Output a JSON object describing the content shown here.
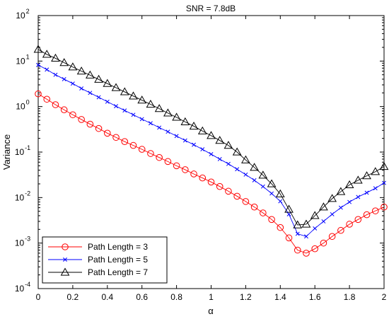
{
  "chart_data": {
    "type": "line",
    "title": "SNR = 7.8dB",
    "xlabel": "α",
    "ylabel": "Variance",
    "xlim": [
      0,
      2
    ],
    "ylim": [
      0.0001,
      100
    ],
    "yscale": "log",
    "x_ticks": [
      "0",
      "0.2",
      "0.4",
      "0.6",
      "0.8",
      "1",
      "1.2",
      "1.4",
      "1.6",
      "1.8",
      "2"
    ],
    "y_tick_base": "10",
    "y_tick_exponents": [
      "-4",
      "-3",
      "-2",
      "-1",
      "0",
      "1",
      "2"
    ],
    "grid": false,
    "legend_position": "bottom-left",
    "x": [
      0,
      0.05,
      0.1,
      0.15,
      0.2,
      0.25,
      0.3,
      0.35,
      0.4,
      0.45,
      0.5,
      0.55,
      0.6,
      0.65,
      0.7,
      0.75,
      0.8,
      0.85,
      0.9,
      0.95,
      1.0,
      1.05,
      1.1,
      1.15,
      1.2,
      1.25,
      1.3,
      1.35,
      1.4,
      1.45,
      1.5,
      1.55,
      1.6,
      1.65,
      1.7,
      1.75,
      1.8,
      1.85,
      1.9,
      1.95,
      2.0
    ],
    "series": [
      {
        "name": "Path Length = 3",
        "color": "#ff0000",
        "marker": "circle",
        "values": [
          1.9,
          1.45,
          1.1,
          0.85,
          0.66,
          0.52,
          0.41,
          0.33,
          0.26,
          0.21,
          0.17,
          0.14,
          0.115,
          0.093,
          0.076,
          0.062,
          0.05,
          0.041,
          0.033,
          0.027,
          0.022,
          0.0175,
          0.0138,
          0.0107,
          0.0082,
          0.0062,
          0.0046,
          0.0033,
          0.0022,
          0.0013,
          0.0007,
          0.0006,
          0.00075,
          0.001,
          0.0014,
          0.0019,
          0.0026,
          0.0033,
          0.0042,
          0.0051,
          0.0062
        ]
      },
      {
        "name": "Path Length = 5",
        "color": "#0000ff",
        "marker": "x",
        "values": [
          8.2,
          6.5,
          5.0,
          4.0,
          3.2,
          2.5,
          2.0,
          1.6,
          1.28,
          1.02,
          0.82,
          0.66,
          0.53,
          0.43,
          0.345,
          0.28,
          0.225,
          0.18,
          0.145,
          0.115,
          0.09,
          0.07,
          0.055,
          0.042,
          0.032,
          0.024,
          0.0175,
          0.0123,
          0.0083,
          0.0043,
          0.0016,
          0.0014,
          0.0021,
          0.003,
          0.0043,
          0.006,
          0.008,
          0.0103,
          0.0128,
          0.016,
          0.021
        ]
      },
      {
        "name": "Path Length = 7",
        "color": "#000000",
        "marker": "triangle",
        "values": [
          18,
          14,
          11.5,
          9.2,
          7.4,
          6.0,
          4.9,
          3.95,
          3.2,
          2.6,
          2.1,
          1.7,
          1.38,
          1.12,
          0.9,
          0.72,
          0.58,
          0.46,
          0.37,
          0.29,
          0.23,
          0.18,
          0.14,
          0.1,
          0.067,
          0.046,
          0.031,
          0.02,
          0.012,
          0.0055,
          0.0025,
          0.0026,
          0.004,
          0.0062,
          0.0095,
          0.0135,
          0.019,
          0.024,
          0.03,
          0.037,
          0.048
        ]
      }
    ]
  }
}
